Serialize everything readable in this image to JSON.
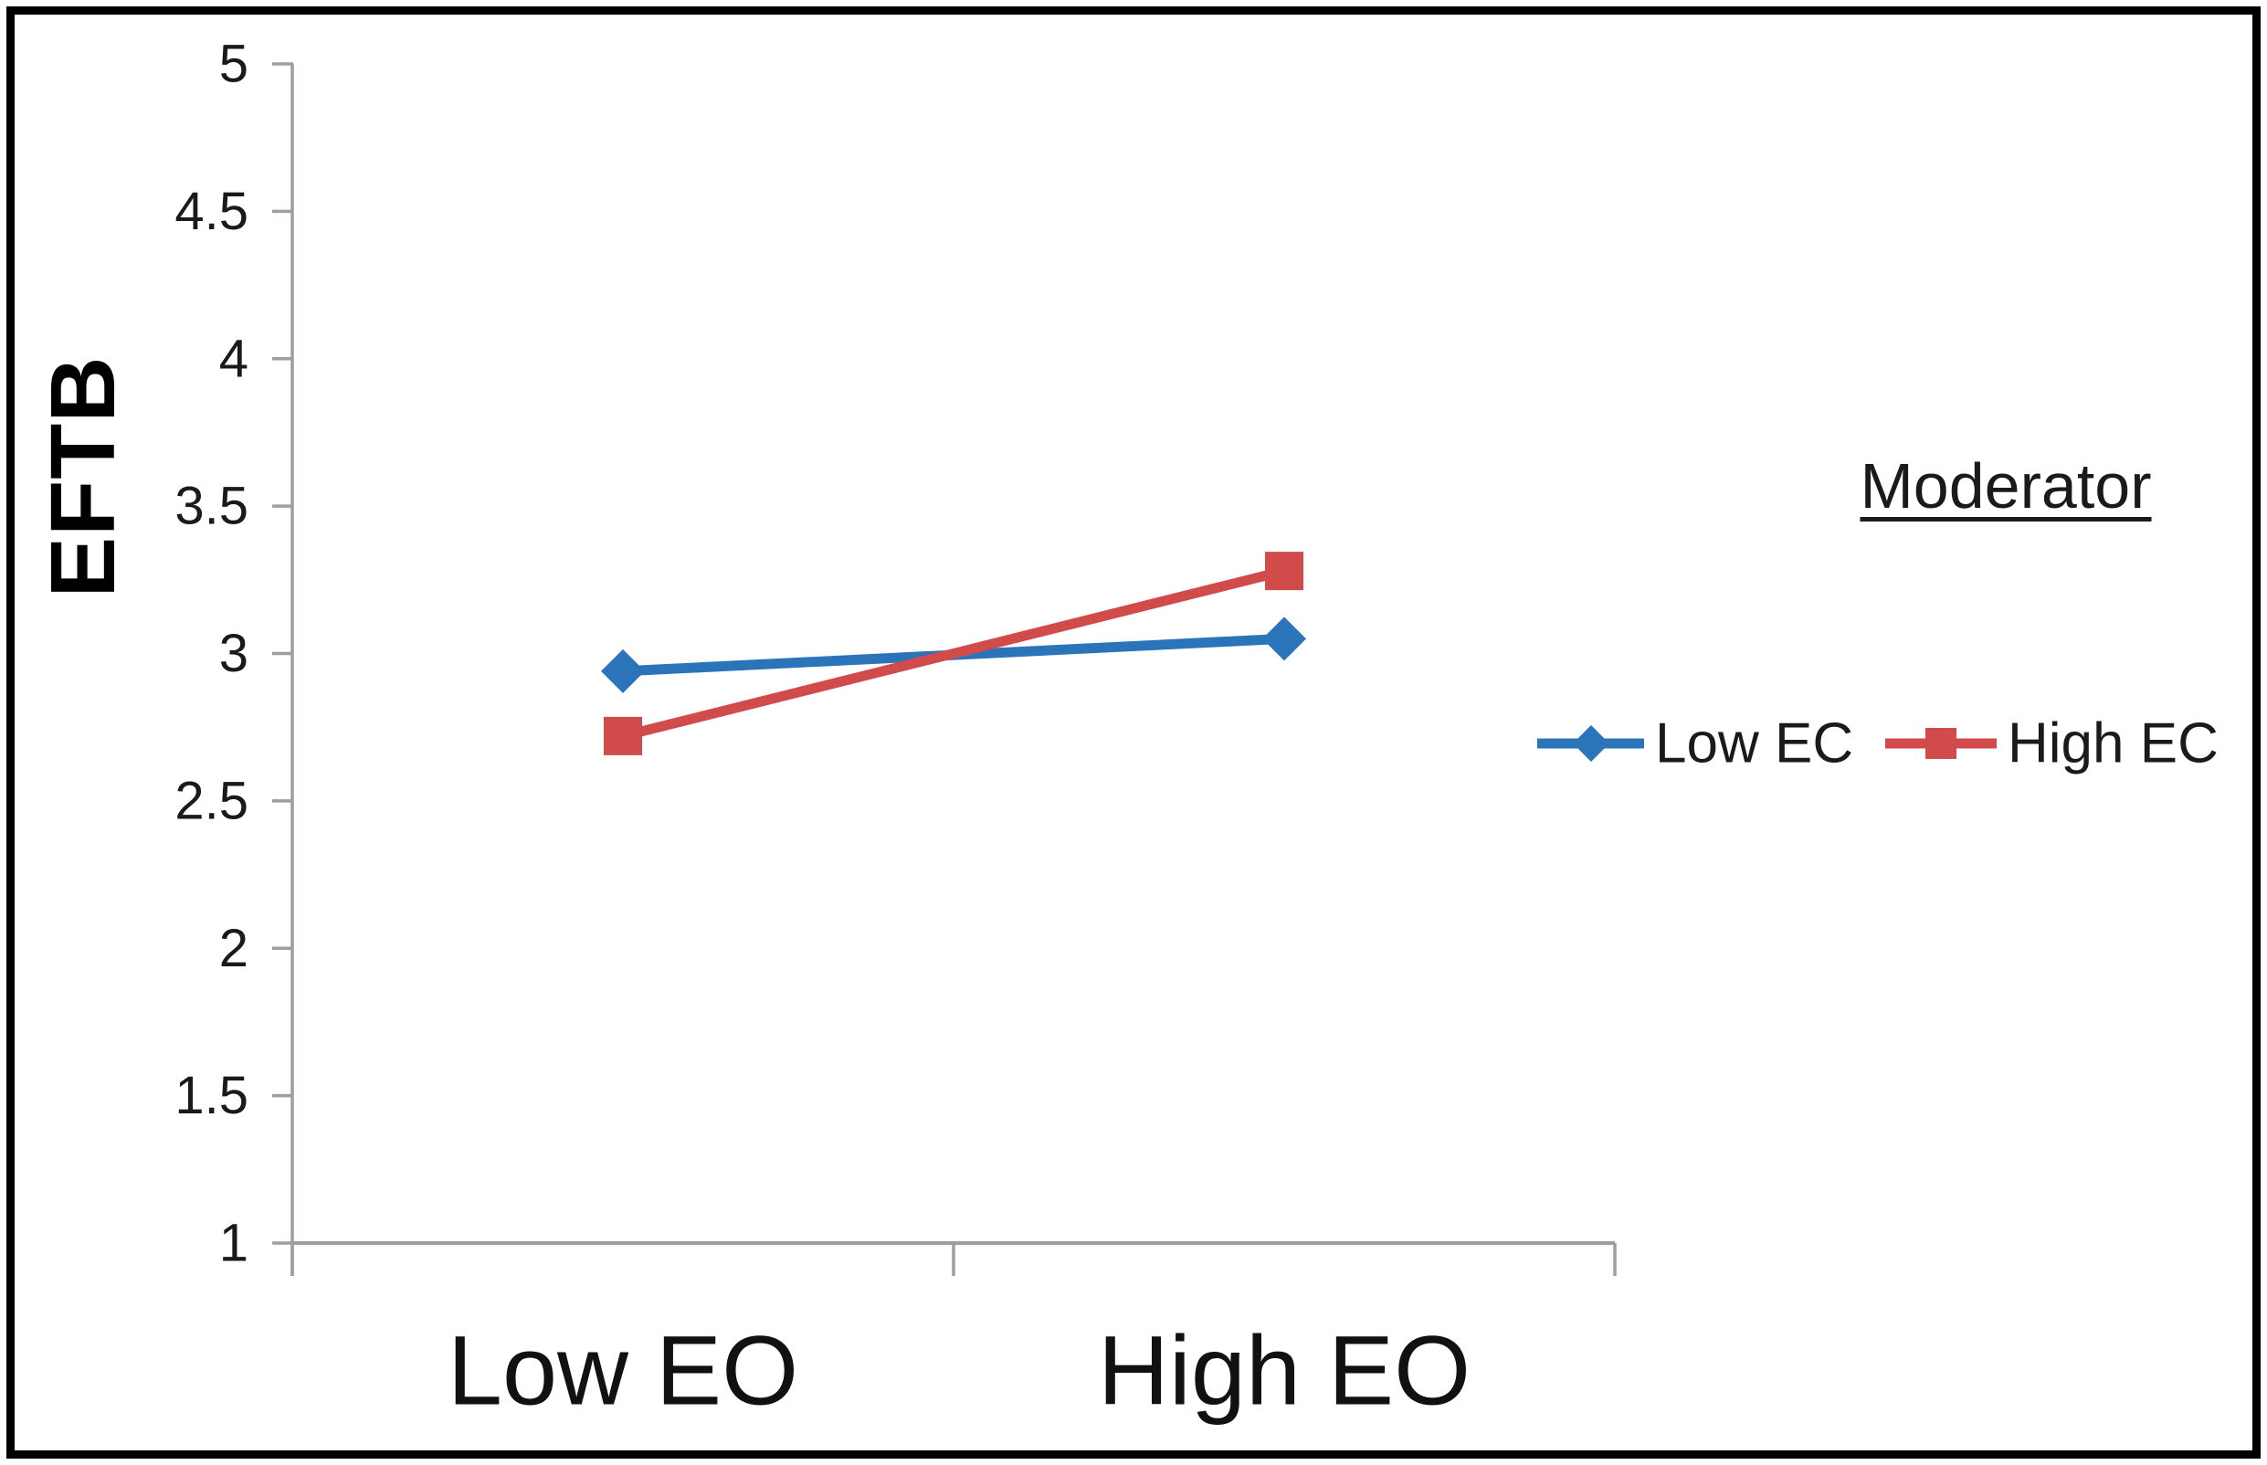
{
  "chart_data": {
    "type": "line",
    "title": "",
    "xlabel": "",
    "ylabel": "EFTB",
    "categories": [
      "Low EO",
      "High EO"
    ],
    "series": [
      {
        "name": "Low EC",
        "color": "#2B74B9",
        "marker": "diamond",
        "values": [
          2.94,
          3.05
        ]
      },
      {
        "name": "High EC",
        "color": "#D24B4B",
        "marker": "square",
        "values": [
          2.72,
          3.28
        ]
      }
    ],
    "ylim": [
      1,
      5
    ],
    "ytick_step": 0.5,
    "ytick_labels": [
      "5",
      "4.5",
      "4",
      "3.5",
      "3",
      "2.5",
      "2",
      "1.5",
      "1"
    ],
    "grid": false,
    "legend": {
      "title": "Moderator",
      "position": "right"
    },
    "colors": {
      "axis": "#9E9E9E",
      "tick_text": "#1A1A1A",
      "category_text": "#111111",
      "frame_border": "#000000"
    }
  }
}
